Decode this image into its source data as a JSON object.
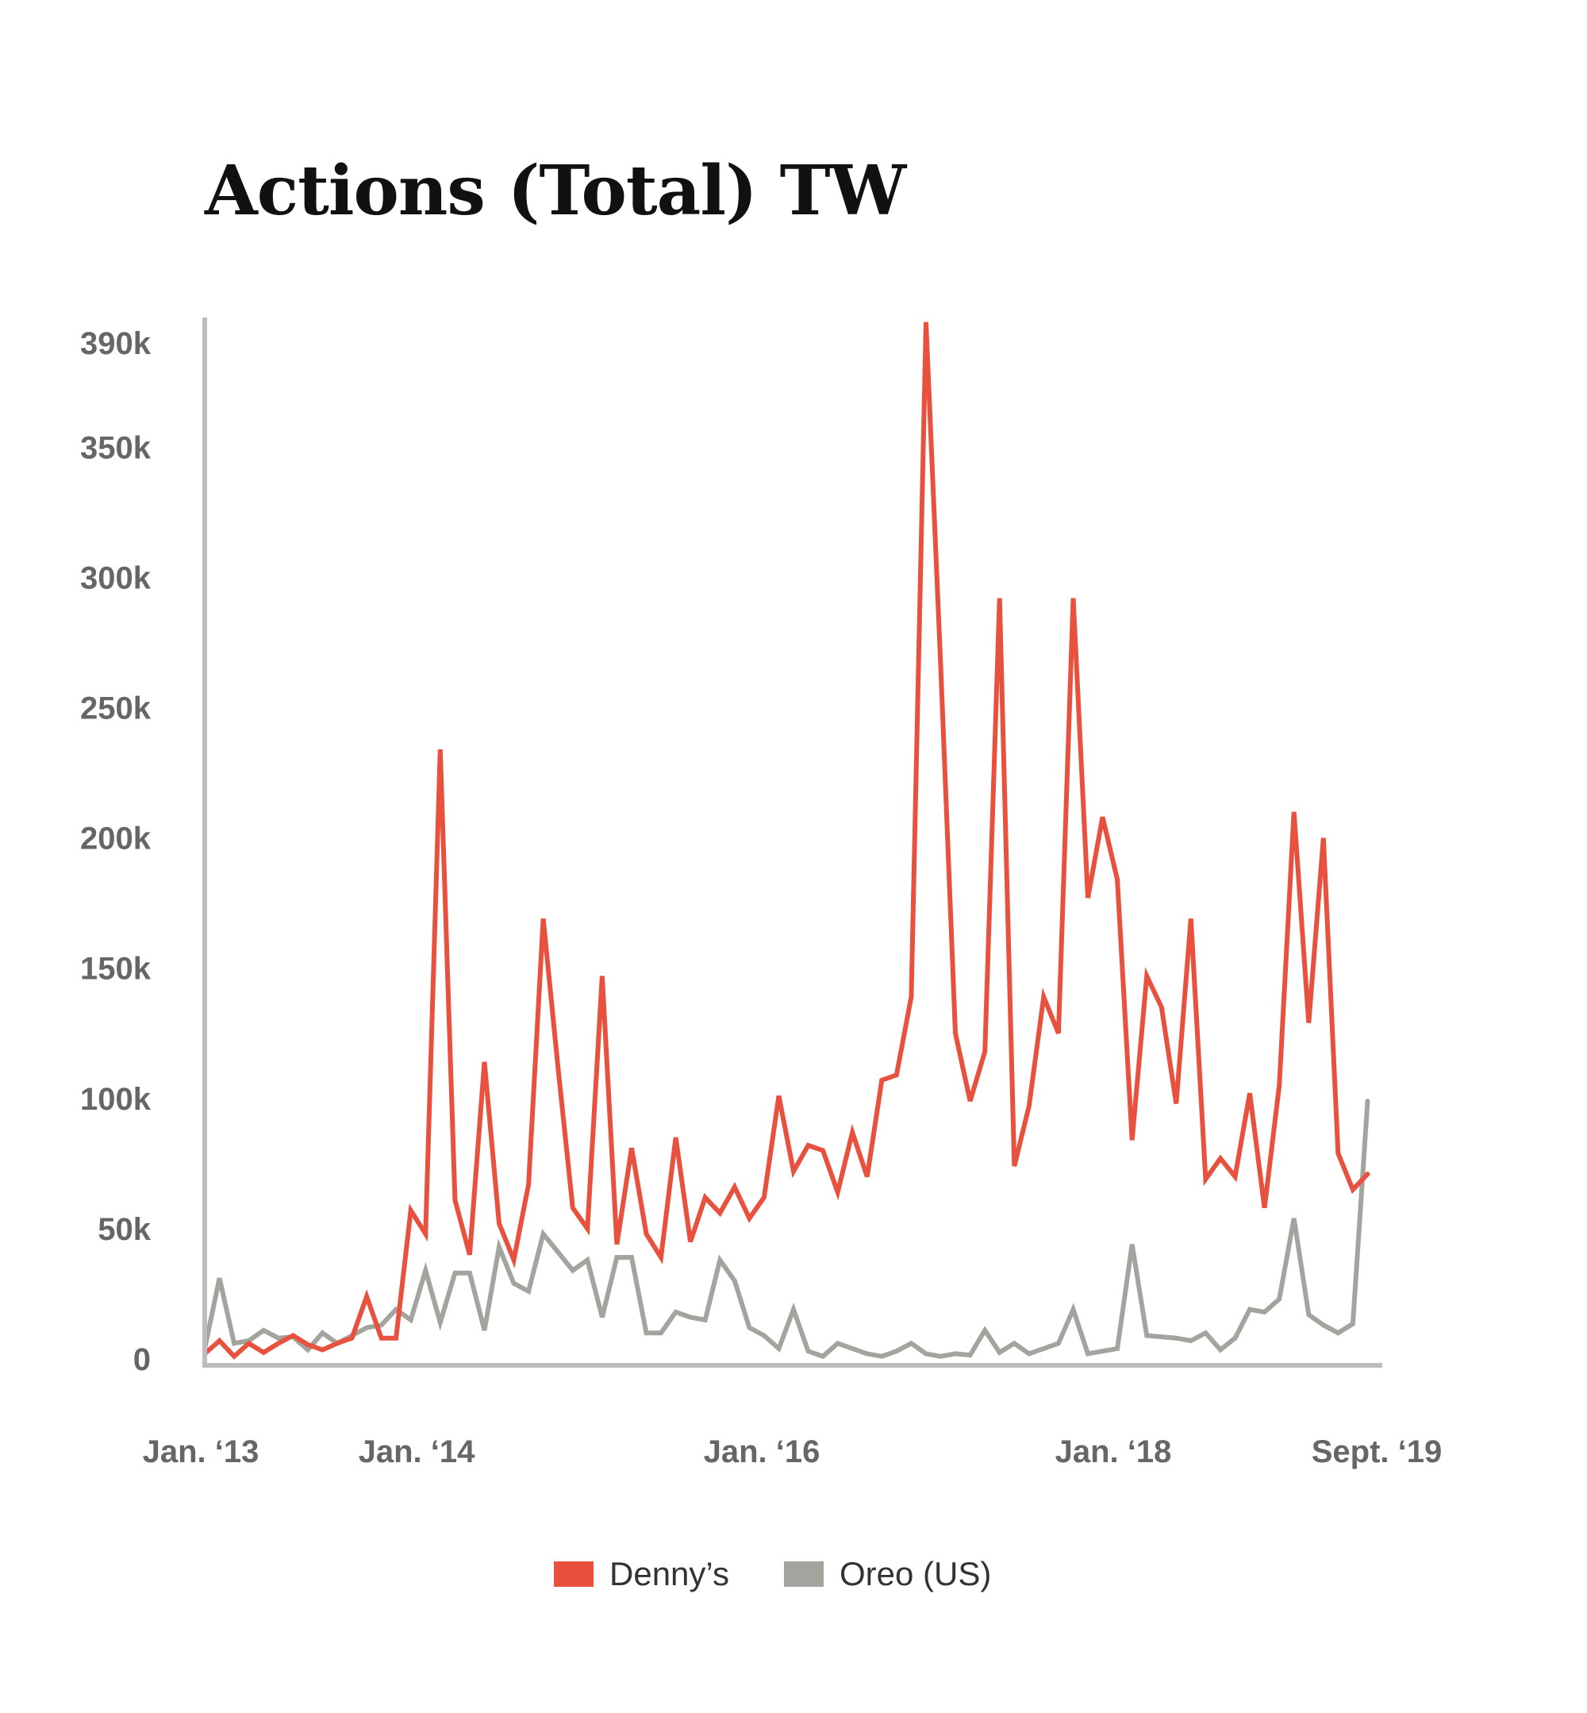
{
  "chart_data": {
    "type": "line",
    "title": "Actions (Total) TW",
    "xlabel": "",
    "ylabel": "",
    "x_tick_labels": [
      "Jan. ‘13",
      "Jan. ‘14",
      "Jan. ‘16",
      "Jan. ‘18",
      "Sept. ‘19"
    ],
    "x_tick_index": [
      0,
      12,
      36,
      60,
      80
    ],
    "x_range_index": [
      0,
      80
    ],
    "y_tick_labels": [
      "0",
      "50k",
      "100k",
      "150k",
      "200k",
      "250k",
      "300k",
      "350k",
      "390k"
    ],
    "y_tick_values": [
      0,
      50000,
      100000,
      150000,
      200000,
      250000,
      300000,
      350000,
      390000
    ],
    "ylim": [
      0,
      400000
    ],
    "grid": false,
    "legend_position": "bottom-center",
    "axis_color": "#bdbdbd",
    "tick_label_color": "#666666",
    "series": [
      {
        "name": "Denny’s",
        "color": "#e8513d",
        "values": [
          2000,
          7000,
          1000,
          6000,
          2500,
          6000,
          9000,
          5500,
          3500,
          6000,
          8000,
          24000,
          8000,
          8000,
          57000,
          48000,
          234000,
          61000,
          40000,
          114000,
          52000,
          38000,
          67000,
          169000,
          112000,
          58000,
          50000,
          147000,
          44000,
          81000,
          48000,
          39000,
          85000,
          45000,
          62000,
          56000,
          66000,
          54000,
          62000,
          101000,
          72000,
          82000,
          80000,
          64000,
          87000,
          70000,
          107000,
          109000,
          139000,
          398000,
          266000,
          125000,
          99000,
          118000,
          292000,
          74000,
          97000,
          139000,
          125000,
          292000,
          177000,
          208000,
          184000,
          84000,
          147000,
          135000,
          98000,
          169000,
          69000,
          77000,
          70000,
          102000,
          58000,
          105000,
          210000,
          129000,
          200000,
          79000,
          65000,
          71000
        ]
      },
      {
        "name": "Oreo (US)",
        "color": "#a4a49f",
        "values": [
          4000,
          31000,
          6000,
          7000,
          11000,
          8000,
          8500,
          3500,
          10000,
          6000,
          9000,
          12000,
          13000,
          19000,
          15000,
          34000,
          14000,
          33000,
          33000,
          11000,
          43000,
          29000,
          26000,
          48000,
          41000,
          34000,
          38000,
          16000,
          39000,
          39000,
          10000,
          10000,
          18000,
          16000,
          15000,
          38000,
          30000,
          12000,
          9000,
          4000,
          19000,
          3000,
          1000,
          6000,
          4000,
          2000,
          1000,
          3000,
          6000,
          2000,
          1000,
          2000,
          1500,
          11000,
          2500,
          6000,
          2000,
          4000,
          6000,
          19000,
          2000,
          3000,
          4000,
          44000,
          9000,
          8500,
          8000,
          7000,
          10000,
          3500,
          8000,
          19000,
          18000,
          23000,
          54000,
          17000,
          13000,
          10000,
          13500,
          99000
        ]
      }
    ]
  }
}
